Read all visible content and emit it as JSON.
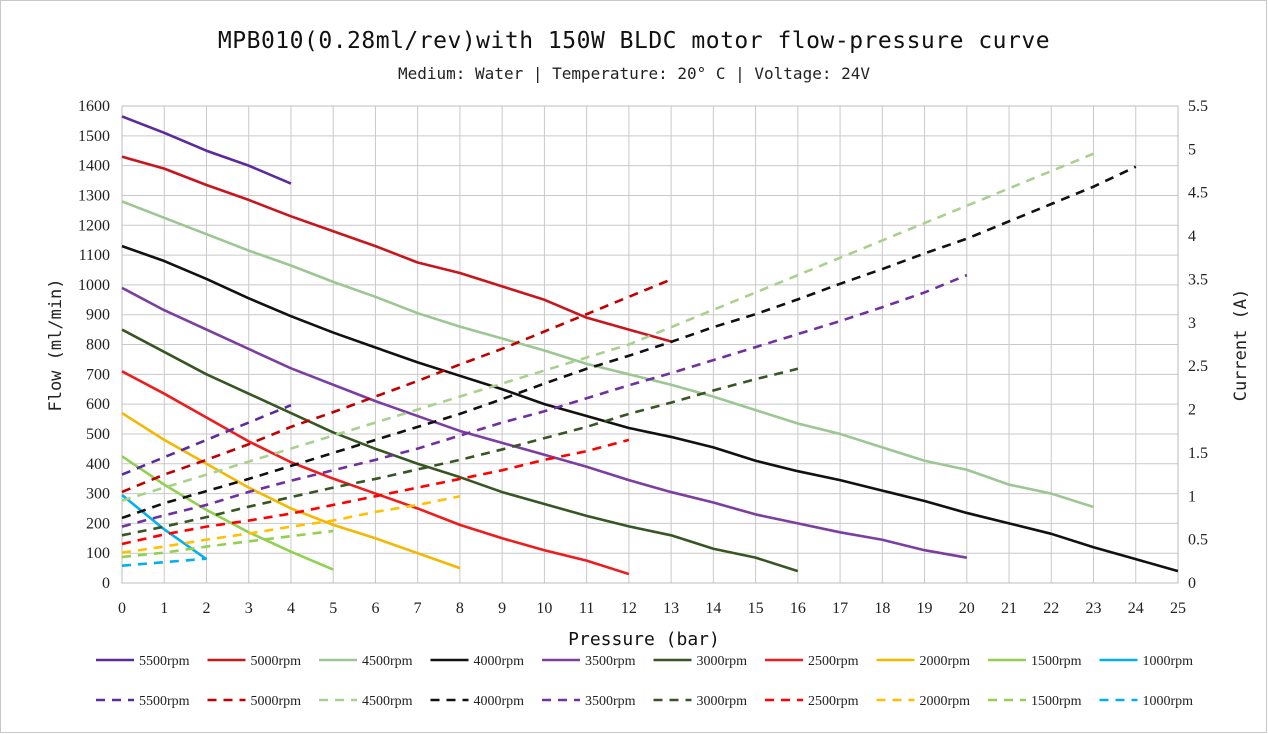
{
  "header": {
    "title": "MPB010(0.28ml/rev)with 150W BLDC motor flow-pressure curve",
    "subtitle": "Medium: Water | Temperature: 20° C | Voltage: 24V"
  },
  "chart_data": {
    "type": "line",
    "title": "MPB010(0.28ml/rev)with 150W BLDC motor flow-pressure curve",
    "subtitle": "Medium: Water | Temperature: 20° C | Voltage: 24V",
    "xlabel": "Pressure (bar)",
    "ylabel": "Flow (ml/min)",
    "y2label": "Current (A)",
    "xlim": [
      0,
      25
    ],
    "ylim": [
      0,
      1600
    ],
    "y2lim": [
      0,
      5.5
    ],
    "x_ticks": [
      0,
      1,
      2,
      3,
      4,
      5,
      6,
      7,
      8,
      9,
      10,
      11,
      12,
      13,
      14,
      15,
      16,
      17,
      18,
      19,
      20,
      21,
      22,
      23,
      24,
      25
    ],
    "y_ticks": [
      0,
      100,
      200,
      300,
      400,
      500,
      600,
      700,
      800,
      900,
      1000,
      1100,
      1200,
      1300,
      1400,
      1500,
      1600
    ],
    "y2_ticks": [
      "0",
      "0.5",
      "1",
      "1.5",
      "2",
      "2.5",
      "3",
      "3.5",
      "4",
      "4.5",
      "5",
      "5.5"
    ],
    "grid": true,
    "legend_position": "bottom",
    "flow_series": [
      {
        "name": "5500rpm",
        "color": "#5b2a9e",
        "x": [
          0,
          1,
          2,
          3,
          4
        ],
        "y": [
          1565,
          1510,
          1450,
          1400,
          1340
        ]
      },
      {
        "name": "5000rpm",
        "color": "#c8161d",
        "x": [
          0,
          1,
          2,
          3,
          4,
          5,
          6,
          7,
          8,
          9,
          10,
          11,
          12,
          13
        ],
        "y": [
          1430,
          1390,
          1335,
          1285,
          1230,
          1180,
          1130,
          1075,
          1040,
          995,
          950,
          890,
          850,
          810
        ]
      },
      {
        "name": "4500rpm",
        "color": "#9cc792",
        "x": [
          0,
          1,
          2,
          3,
          4,
          5,
          6,
          7,
          8,
          9,
          10,
          11,
          12,
          13,
          14,
          15,
          16,
          17,
          18,
          19,
          20,
          21,
          22,
          23
        ],
        "y": [
          1280,
          1225,
          1170,
          1115,
          1065,
          1010,
          960,
          905,
          860,
          820,
          780,
          735,
          700,
          665,
          625,
          580,
          535,
          500,
          455,
          410,
          380,
          330,
          300,
          255
        ]
      },
      {
        "name": "4000rpm",
        "color": "#111111",
        "x": [
          0,
          1,
          2,
          3,
          4,
          5,
          6,
          7,
          8,
          9,
          10,
          11,
          12,
          13,
          14,
          15,
          16,
          17,
          18,
          19,
          20,
          21,
          22,
          23,
          24,
          25
        ],
        "y": [
          1130,
          1080,
          1020,
          955,
          895,
          840,
          790,
          740,
          695,
          650,
          600,
          560,
          520,
          490,
          455,
          410,
          375,
          345,
          310,
          275,
          235,
          200,
          165,
          120,
          80,
          40
        ]
      },
      {
        "name": "3500rpm",
        "color": "#7b3fa0",
        "x": [
          0,
          1,
          2,
          3,
          4,
          5,
          6,
          7,
          8,
          9,
          10,
          11,
          12,
          13,
          14,
          15,
          16,
          17,
          18,
          19,
          20
        ],
        "y": [
          990,
          915,
          850,
          785,
          720,
          665,
          610,
          560,
          510,
          470,
          430,
          390,
          345,
          305,
          270,
          230,
          200,
          170,
          145,
          110,
          85
        ]
      },
      {
        "name": "3000rpm",
        "color": "#375623",
        "x": [
          0,
          1,
          2,
          3,
          4,
          5,
          6,
          7,
          8,
          9,
          10,
          11,
          12,
          13,
          14,
          15,
          16
        ],
        "y": [
          850,
          775,
          700,
          635,
          570,
          505,
          450,
          400,
          355,
          305,
          265,
          225,
          190,
          160,
          115,
          85,
          40
        ]
      },
      {
        "name": "2500rpm",
        "color": "#ee1c1c",
        "x": [
          0,
          1,
          2,
          3,
          4,
          5,
          6,
          7,
          8,
          9,
          10,
          11,
          12
        ],
        "y": [
          710,
          635,
          555,
          475,
          405,
          350,
          300,
          250,
          195,
          150,
          110,
          75,
          30
        ]
      },
      {
        "name": "2000rpm",
        "color": "#f5b700",
        "x": [
          0,
          1,
          2,
          3,
          4,
          5,
          6,
          7,
          8
        ],
        "y": [
          570,
          480,
          400,
          320,
          250,
          195,
          150,
          100,
          50
        ]
      },
      {
        "name": "1500rpm",
        "color": "#92d050",
        "x": [
          0,
          1,
          2,
          3,
          4,
          5
        ],
        "y": [
          425,
          330,
          245,
          170,
          105,
          45
        ]
      },
      {
        "name": "1000rpm",
        "color": "#00b0f0",
        "x": [
          0,
          1,
          2
        ],
        "y": [
          295,
          180,
          80
        ]
      }
    ],
    "current_series": [
      {
        "name": "5500rpm",
        "color": "#5b2a9e",
        "x": [
          0,
          1,
          2,
          3,
          4
        ],
        "y": [
          1.25,
          1.45,
          1.65,
          1.85,
          2.05
        ]
      },
      {
        "name": "5000rpm",
        "color": "#c00000",
        "x": [
          0,
          1,
          2,
          3,
          4,
          5,
          6,
          7,
          8,
          9,
          10,
          11,
          12,
          13
        ],
        "y": [
          1.05,
          1.25,
          1.42,
          1.6,
          1.8,
          1.97,
          2.15,
          2.33,
          2.52,
          2.7,
          2.9,
          3.1,
          3.3,
          3.5
        ]
      },
      {
        "name": "4500rpm",
        "color": "#a9d18e",
        "x": [
          0,
          1,
          2,
          3,
          4,
          5,
          6,
          7,
          8,
          9,
          10,
          11,
          12,
          13,
          14,
          15,
          16,
          17,
          18,
          19,
          20,
          21,
          22,
          23
        ],
        "y": [
          0.95,
          1.1,
          1.25,
          1.4,
          1.55,
          1.7,
          1.85,
          2.0,
          2.15,
          2.3,
          2.45,
          2.6,
          2.75,
          2.95,
          3.15,
          3.35,
          3.55,
          3.75,
          3.95,
          4.15,
          4.35,
          4.55,
          4.75,
          4.95
        ]
      },
      {
        "name": "4000rpm",
        "color": "#111111",
        "x": [
          0,
          1,
          2,
          3,
          4,
          5,
          6,
          7,
          8,
          9,
          10,
          11,
          12,
          13,
          14,
          15,
          16,
          17,
          18,
          19,
          20,
          21,
          22,
          23,
          24
        ],
        "y": [
          0.75,
          0.92,
          1.06,
          1.2,
          1.35,
          1.5,
          1.65,
          1.8,
          1.95,
          2.12,
          2.3,
          2.47,
          2.62,
          2.78,
          2.95,
          3.1,
          3.27,
          3.45,
          3.62,
          3.8,
          3.97,
          4.17,
          4.37,
          4.57,
          4.8
        ]
      },
      {
        "name": "3500rpm",
        "color": "#7030a0",
        "x": [
          0,
          1,
          2,
          3,
          4,
          5,
          6,
          7,
          8,
          9,
          10,
          11,
          12,
          13,
          14,
          15,
          16,
          17,
          18,
          19,
          20
        ],
        "y": [
          0.65,
          0.78,
          0.9,
          1.05,
          1.18,
          1.3,
          1.42,
          1.55,
          1.7,
          1.85,
          1.98,
          2.13,
          2.28,
          2.42,
          2.57,
          2.72,
          2.87,
          3.02,
          3.18,
          3.35,
          3.55
        ]
      },
      {
        "name": "3000rpm",
        "color": "#375623",
        "x": [
          0,
          1,
          2,
          3,
          4,
          5,
          6,
          7,
          8,
          9,
          10,
          11,
          12,
          13,
          14,
          15,
          16
        ],
        "y": [
          0.55,
          0.65,
          0.76,
          0.88,
          0.99,
          1.1,
          1.2,
          1.31,
          1.42,
          1.54,
          1.67,
          1.8,
          1.95,
          2.08,
          2.22,
          2.35,
          2.47
        ]
      },
      {
        "name": "2500rpm",
        "color": "#ff0000",
        "x": [
          0,
          1,
          2,
          3,
          4,
          5,
          6,
          7,
          8,
          9,
          10,
          11,
          12
        ],
        "y": [
          0.45,
          0.56,
          0.65,
          0.72,
          0.8,
          0.9,
          1.0,
          1.1,
          1.2,
          1.3,
          1.42,
          1.52,
          1.65
        ]
      },
      {
        "name": "2000rpm",
        "color": "#ffc000",
        "x": [
          0,
          1,
          2,
          3,
          4,
          5,
          6,
          7,
          8
        ],
        "y": [
          0.35,
          0.42,
          0.5,
          0.57,
          0.65,
          0.72,
          0.82,
          0.9,
          1.0
        ]
      },
      {
        "name": "1500rpm",
        "color": "#92d050",
        "x": [
          0,
          1,
          2,
          3,
          4,
          5
        ],
        "y": [
          0.3,
          0.35,
          0.42,
          0.48,
          0.54,
          0.6
        ]
      },
      {
        "name": "1000rpm",
        "color": "#00b0f0",
        "x": [
          0,
          1,
          2
        ],
        "y": [
          0.2,
          0.24,
          0.28
        ]
      }
    ]
  }
}
